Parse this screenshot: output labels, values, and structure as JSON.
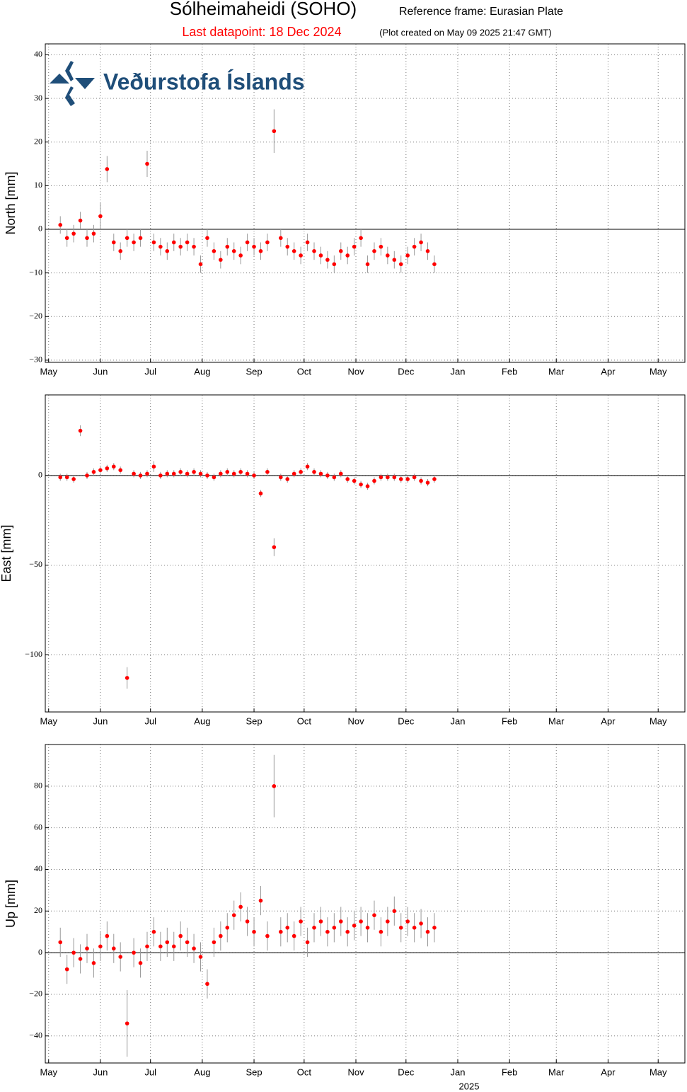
{
  "header": {
    "title": "Sólheimaheidi (SOHO)",
    "frame": "Reference frame: Eurasian Plate",
    "last": "Last datapoint: 18 Dec 2024",
    "created": "(Plot created on May 09 2025 21:47 GMT)"
  },
  "logo": "Veðurstofa Íslands",
  "chart_data": [
    {
      "type": "scatter",
      "ylabel": "North [mm]",
      "color": "#ff0000",
      "error_color": "#999999",
      "grid": true,
      "hline": 0,
      "xlim": [
        "2024-04-29",
        "2025-05-17"
      ],
      "xticks": [
        {
          "value": "2024-05-01",
          "label": "May"
        },
        {
          "value": "2024-06-01",
          "label": "Jun"
        },
        {
          "value": "2024-07-01",
          "label": "Jul"
        },
        {
          "value": "2024-08-01",
          "label": "Aug"
        },
        {
          "value": "2024-09-01",
          "label": "Sep"
        },
        {
          "value": "2024-10-01",
          "label": "Oct"
        },
        {
          "value": "2024-11-01",
          "label": "Nov"
        },
        {
          "value": "2024-12-01",
          "label": "Dec"
        },
        {
          "value": "2025-01-01",
          "label": "Jan"
        },
        {
          "value": "2025-02-01",
          "label": "Feb"
        },
        {
          "value": "2025-03-01",
          "label": "Mar"
        },
        {
          "value": "2025-04-01",
          "label": "Apr"
        },
        {
          "value": "2025-05-01",
          "label": "May"
        }
      ],
      "ylim": [
        -30.5,
        42.5
      ],
      "yticks": [
        {
          "value": -30,
          "label": "−30"
        },
        {
          "value": -20,
          "label": "−20"
        },
        {
          "value": -10,
          "label": "−10"
        },
        0,
        10,
        20,
        30,
        40
      ],
      "x": [
        "2024-05-08",
        "2024-05-12",
        "2024-05-16",
        "2024-05-20",
        "2024-05-24",
        "2024-05-28",
        "2024-06-01",
        "2024-06-05",
        "2024-06-09",
        "2024-06-13",
        "2024-06-17",
        "2024-06-21",
        "2024-06-25",
        "2024-06-29",
        "2024-07-03",
        "2024-07-07",
        "2024-07-11",
        "2024-07-15",
        "2024-07-19",
        "2024-07-23",
        "2024-07-27",
        "2024-07-31",
        "2024-08-04",
        "2024-08-08",
        "2024-08-12",
        "2024-08-16",
        "2024-08-20",
        "2024-08-24",
        "2024-08-28",
        "2024-09-01",
        "2024-09-05",
        "2024-09-09",
        "2024-09-13",
        "2024-09-17",
        "2024-09-21",
        "2024-09-25",
        "2024-09-29",
        "2024-10-03",
        "2024-10-07",
        "2024-10-11",
        "2024-10-15",
        "2024-10-19",
        "2024-10-23",
        "2024-10-27",
        "2024-10-31",
        "2024-11-04",
        "2024-11-08",
        "2024-11-12",
        "2024-11-16",
        "2024-11-20",
        "2024-11-24",
        "2024-11-28",
        "2024-12-02",
        "2024-12-06",
        "2024-12-10",
        "2024-12-14",
        "2024-12-18"
      ],
      "values": [
        1,
        -2,
        -1,
        2,
        -2,
        -1,
        3,
        13.8,
        -3,
        -5,
        -2,
        -3,
        -2,
        15,
        -3,
        -4,
        -5,
        -3,
        -4,
        -3,
        -4,
        -8,
        -2,
        -5,
        -7,
        -4,
        -5,
        -6,
        -3,
        -4,
        -5,
        -3,
        22.5,
        -2,
        -4,
        -5,
        -6,
        -3,
        -5,
        -6,
        -7,
        -8,
        -5,
        -6,
        -4,
        -2,
        -8,
        -5,
        -4,
        -6,
        -7,
        -8,
        -6,
        -4,
        -3,
        -5,
        -8
      ],
      "errors": [
        2,
        2,
        2,
        2,
        2,
        2,
        3,
        3,
        2,
        2,
        2,
        2,
        2,
        3,
        2,
        2,
        2,
        2,
        2,
        2,
        2,
        2,
        2,
        2,
        2,
        2,
        2,
        2,
        2,
        2,
        2,
        2,
        5,
        2,
        2,
        2,
        2,
        2,
        2,
        2,
        2,
        2,
        2,
        2,
        2,
        2,
        2,
        2,
        2,
        2,
        2,
        2,
        2,
        2,
        2,
        2,
        2
      ]
    },
    {
      "type": "scatter",
      "ylabel": "East [mm]",
      "color": "#ff0000",
      "error_color": "#999999",
      "grid": true,
      "hline": 0,
      "xlim": [
        "2024-04-29",
        "2025-05-17"
      ],
      "xticks": [
        {
          "value": "2024-05-01",
          "label": "May"
        },
        {
          "value": "2024-06-01",
          "label": "Jun"
        },
        {
          "value": "2024-07-01",
          "label": "Jul"
        },
        {
          "value": "2024-08-01",
          "label": "Aug"
        },
        {
          "value": "2024-09-01",
          "label": "Sep"
        },
        {
          "value": "2024-10-01",
          "label": "Oct"
        },
        {
          "value": "2024-11-01",
          "label": "Nov"
        },
        {
          "value": "2024-12-01",
          "label": "Dec"
        },
        {
          "value": "2025-01-01",
          "label": "Jan"
        },
        {
          "value": "2025-02-01",
          "label": "Feb"
        },
        {
          "value": "2025-03-01",
          "label": "Mar"
        },
        {
          "value": "2025-04-01",
          "label": "Apr"
        },
        {
          "value": "2025-05-01",
          "label": "May"
        }
      ],
      "ylim": [
        -132,
        45
      ],
      "yticks": [
        {
          "value": -100,
          "label": "−100"
        },
        {
          "value": -50,
          "label": "−50"
        },
        0
      ],
      "x": [
        "2024-05-08",
        "2024-05-12",
        "2024-05-16",
        "2024-05-20",
        "2024-05-24",
        "2024-05-28",
        "2024-06-01",
        "2024-06-05",
        "2024-06-09",
        "2024-06-13",
        "2024-06-17",
        "2024-06-21",
        "2024-06-25",
        "2024-06-29",
        "2024-07-03",
        "2024-07-07",
        "2024-07-11",
        "2024-07-15",
        "2024-07-19",
        "2024-07-23",
        "2024-07-27",
        "2024-07-31",
        "2024-08-04",
        "2024-08-08",
        "2024-08-12",
        "2024-08-16",
        "2024-08-20",
        "2024-08-24",
        "2024-08-28",
        "2024-09-01",
        "2024-09-05",
        "2024-09-09",
        "2024-09-13",
        "2024-09-17",
        "2024-09-21",
        "2024-09-25",
        "2024-09-29",
        "2024-10-03",
        "2024-10-07",
        "2024-10-11",
        "2024-10-15",
        "2024-10-19",
        "2024-10-23",
        "2024-10-27",
        "2024-10-31",
        "2024-11-04",
        "2024-11-08",
        "2024-11-12",
        "2024-11-16",
        "2024-11-20",
        "2024-11-24",
        "2024-11-28",
        "2024-12-02",
        "2024-12-06",
        "2024-12-10",
        "2024-12-14",
        "2024-12-18"
      ],
      "values": [
        -1,
        -1,
        -2,
        25,
        0,
        2,
        3,
        4,
        5,
        3,
        -113,
        1,
        0,
        1,
        5,
        0,
        1,
        1,
        2,
        1,
        2,
        1,
        0,
        -1,
        1,
        2,
        1,
        2,
        1,
        0,
        -10,
        2,
        -40,
        -1,
        -2,
        1,
        2,
        5,
        2,
        1,
        0,
        -1,
        1,
        -2,
        -3,
        -5,
        -6,
        -3,
        -1,
        -1,
        -1,
        -2,
        -2,
        -1,
        -3,
        -4,
        -2
      ],
      "errors": [
        2,
        2,
        2,
        3,
        2,
        2,
        2,
        2,
        2,
        2,
        6,
        2,
        2,
        2,
        3,
        2,
        2,
        2,
        2,
        2,
        2,
        2,
        2,
        2,
        2,
        2,
        2,
        2,
        2,
        2,
        2,
        2,
        5,
        2,
        2,
        2,
        2,
        2,
        2,
        2,
        2,
        2,
        2,
        2,
        2,
        2,
        2,
        2,
        2,
        2,
        2,
        2,
        2,
        2,
        2,
        2,
        2
      ]
    },
    {
      "type": "scatter",
      "ylabel": "Up [mm]",
      "color": "#ff0000",
      "error_color": "#999999",
      "grid": true,
      "hline": 0,
      "year_label": "2025",
      "xlim": [
        "2024-04-29",
        "2025-05-17"
      ],
      "xticks": [
        {
          "value": "2024-05-01",
          "label": "May"
        },
        {
          "value": "2024-06-01",
          "label": "Jun"
        },
        {
          "value": "2024-07-01",
          "label": "Jul"
        },
        {
          "value": "2024-08-01",
          "label": "Aug"
        },
        {
          "value": "2024-09-01",
          "label": "Sep"
        },
        {
          "value": "2024-10-01",
          "label": "Oct"
        },
        {
          "value": "2024-11-01",
          "label": "Nov"
        },
        {
          "value": "2024-12-01",
          "label": "Dec"
        },
        {
          "value": "2025-01-01",
          "label": "Jan"
        },
        {
          "value": "2025-02-01",
          "label": "Feb"
        },
        {
          "value": "2025-03-01",
          "label": "Mar"
        },
        {
          "value": "2025-04-01",
          "label": "Apr"
        },
        {
          "value": "2025-05-01",
          "label": "May"
        }
      ],
      "ylim": [
        -53,
        100
      ],
      "yticks": [
        {
          "value": -40,
          "label": "−40"
        },
        {
          "value": -20,
          "label": "−20"
        },
        0,
        20,
        40,
        60,
        80
      ],
      "x": [
        "2024-05-08",
        "2024-05-12",
        "2024-05-16",
        "2024-05-20",
        "2024-05-24",
        "2024-05-28",
        "2024-06-01",
        "2024-06-05",
        "2024-06-09",
        "2024-06-13",
        "2024-06-17",
        "2024-06-21",
        "2024-06-25",
        "2024-06-29",
        "2024-07-03",
        "2024-07-07",
        "2024-07-11",
        "2024-07-15",
        "2024-07-19",
        "2024-07-23",
        "2024-07-27",
        "2024-07-31",
        "2024-08-04",
        "2024-08-08",
        "2024-08-12",
        "2024-08-16",
        "2024-08-20",
        "2024-08-24",
        "2024-08-28",
        "2024-09-01",
        "2024-09-05",
        "2024-09-09",
        "2024-09-13",
        "2024-09-17",
        "2024-09-21",
        "2024-09-25",
        "2024-09-29",
        "2024-10-03",
        "2024-10-07",
        "2024-10-11",
        "2024-10-15",
        "2024-10-19",
        "2024-10-23",
        "2024-10-27",
        "2024-10-31",
        "2024-11-04",
        "2024-11-08",
        "2024-11-12",
        "2024-11-16",
        "2024-11-20",
        "2024-11-24",
        "2024-11-28",
        "2024-12-02",
        "2024-12-06",
        "2024-12-10",
        "2024-12-14",
        "2024-12-18"
      ],
      "values": [
        5,
        -8,
        0,
        -3,
        2,
        -5,
        3,
        8,
        2,
        -2,
        -34,
        0,
        -5,
        3,
        10,
        3,
        5,
        3,
        8,
        5,
        2,
        -2,
        -15,
        5,
        8,
        12,
        18,
        22,
        15,
        10,
        25,
        8,
        80,
        10,
        12,
        8,
        15,
        5,
        12,
        15,
        10,
        12,
        15,
        10,
        13,
        15,
        12,
        18,
        10,
        15,
        20,
        12,
        15,
        12,
        14,
        10,
        12
      ],
      "errors": [
        7,
        7,
        7,
        7,
        7,
        7,
        7,
        7,
        7,
        7,
        16,
        7,
        7,
        7,
        7,
        7,
        7,
        7,
        7,
        7,
        7,
        7,
        7,
        7,
        7,
        7,
        7,
        7,
        7,
        7,
        7,
        7,
        15,
        7,
        7,
        7,
        7,
        7,
        7,
        7,
        7,
        7,
        7,
        7,
        7,
        7,
        7,
        7,
        7,
        7,
        7,
        7,
        7,
        7,
        7,
        7,
        7
      ]
    }
  ]
}
